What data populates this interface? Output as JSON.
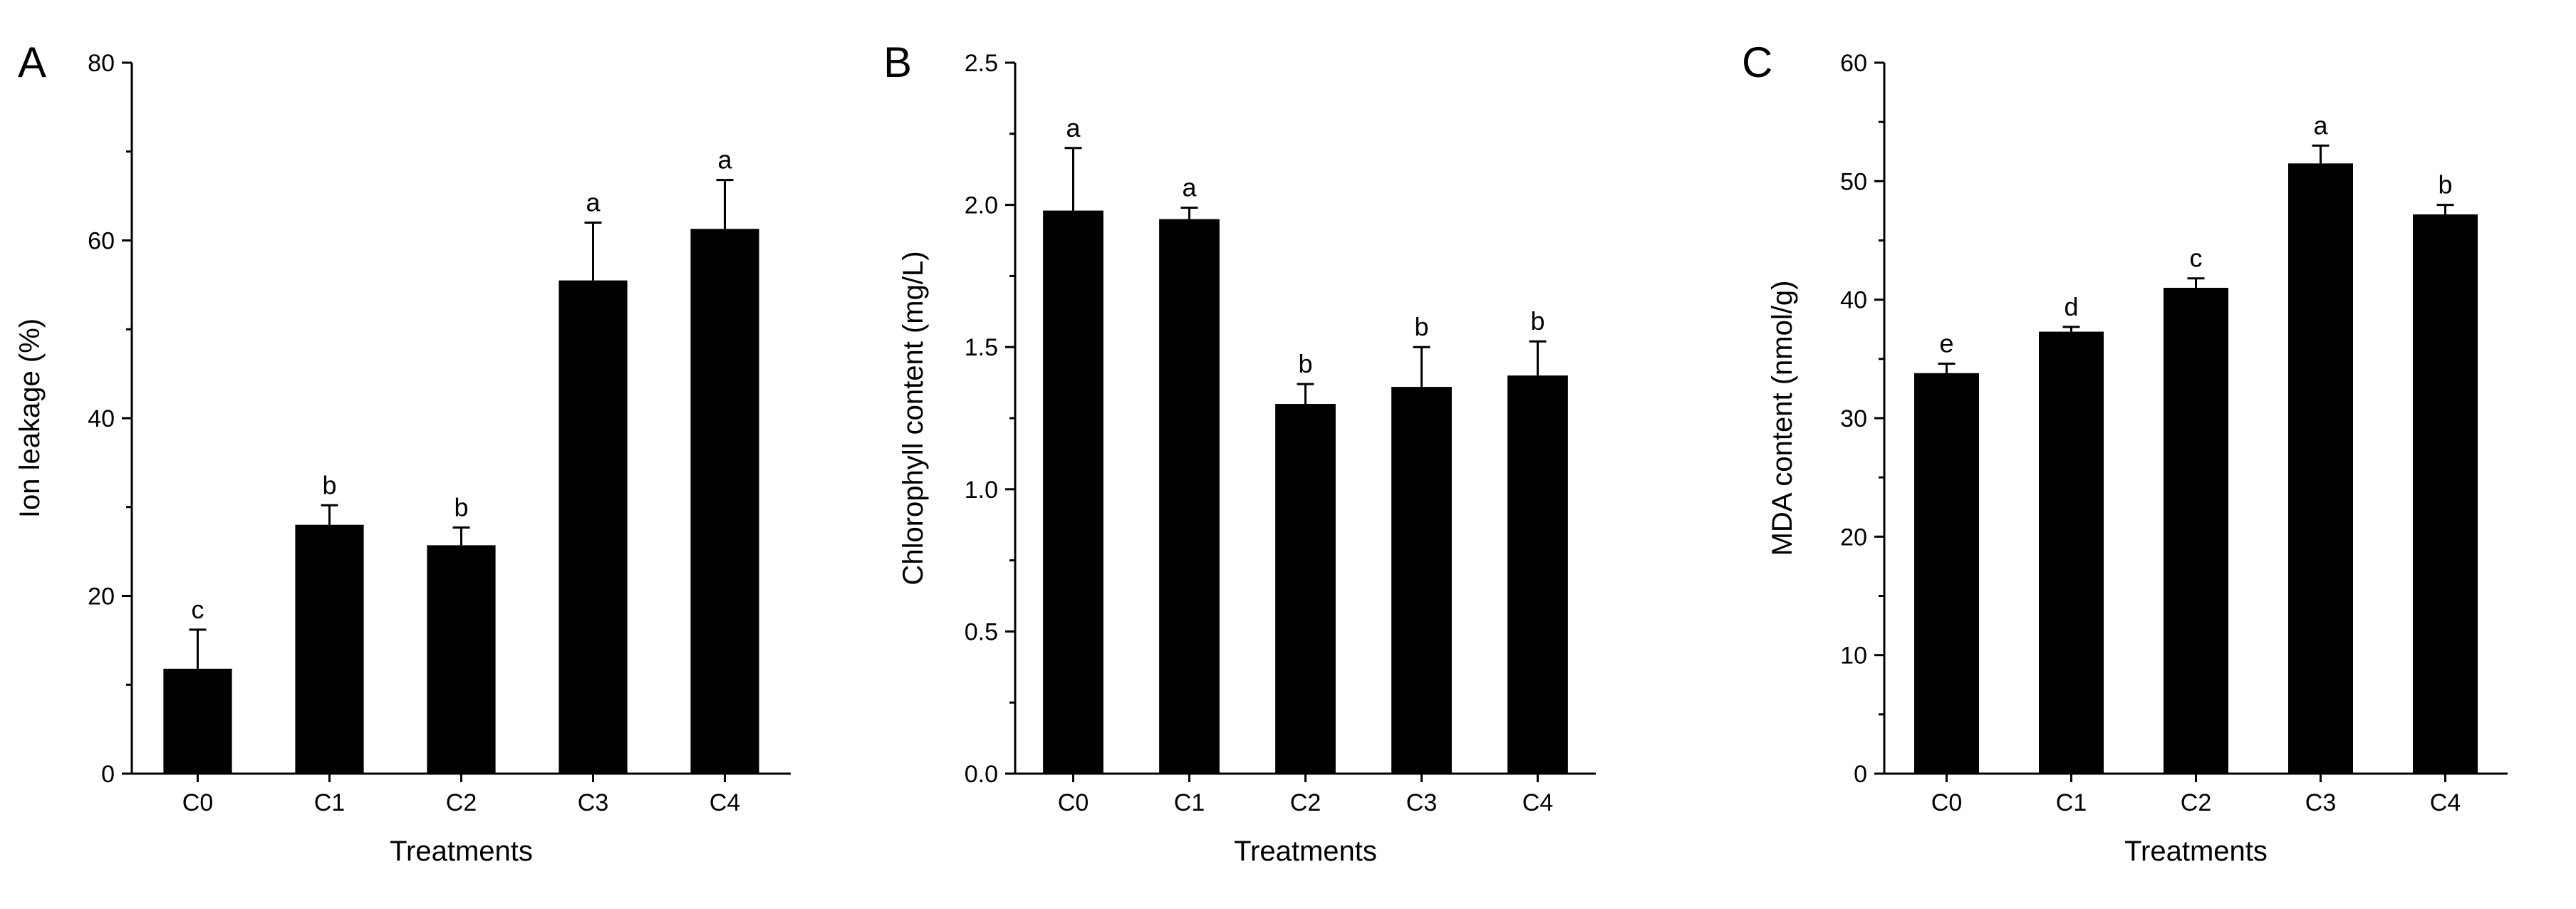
{
  "chart_data": [
    {
      "type": "bar",
      "panel": "A",
      "title": "",
      "xlabel": "Treatments",
      "ylabel": "Ion leakage (%)",
      "categories": [
        "C0",
        "C1",
        "C2",
        "C3",
        "C4"
      ],
      "values": [
        11.8,
        28.0,
        25.7,
        55.5,
        61.3
      ],
      "errors": [
        4.4,
        2.2,
        2.0,
        6.5,
        5.5
      ],
      "letters": [
        "c",
        "b",
        "b",
        "a",
        "a"
      ],
      "ylim": [
        0,
        80
      ],
      "yticks": [
        0,
        20,
        40,
        60,
        80
      ],
      "ytick_labels": [
        "0",
        "20",
        "40",
        "60",
        "80"
      ],
      "color": "#000000"
    },
    {
      "type": "bar",
      "panel": "B",
      "title": "",
      "xlabel": "Treatments",
      "ylabel": "Chlorophyll content (mg/L)",
      "categories": [
        "C0",
        "C1",
        "C2",
        "C3",
        "C4"
      ],
      "values": [
        1.98,
        1.95,
        1.3,
        1.36,
        1.4
      ],
      "errors": [
        0.22,
        0.04,
        0.07,
        0.14,
        0.12
      ],
      "letters": [
        "a",
        "a",
        "b",
        "b",
        "b"
      ],
      "ylim": [
        0,
        2.5
      ],
      "yticks": [
        0,
        0.5,
        1.0,
        1.5,
        2.0,
        2.5
      ],
      "ytick_labels": [
        "0.0",
        "0.5",
        "1.0",
        "1.5",
        "2.0",
        "2.5"
      ],
      "color": "#000000"
    },
    {
      "type": "bar",
      "panel": "C",
      "title": "",
      "xlabel": "Treatments",
      "ylabel": "MDA content (nmol/g)",
      "categories": [
        "C0",
        "C1",
        "C2",
        "C3",
        "C4"
      ],
      "values": [
        33.8,
        37.3,
        41.0,
        51.5,
        47.2
      ],
      "errors": [
        0.8,
        0.4,
        0.8,
        1.5,
        0.8
      ],
      "letters": [
        "e",
        "d",
        "c",
        "a",
        "b"
      ],
      "ylim": [
        0,
        60
      ],
      "yticks": [
        0,
        10,
        20,
        30,
        40,
        50,
        60
      ],
      "ytick_labels": [
        "0",
        "10",
        "20",
        "30",
        "40",
        "50",
        "60"
      ],
      "color": "#000000"
    }
  ]
}
